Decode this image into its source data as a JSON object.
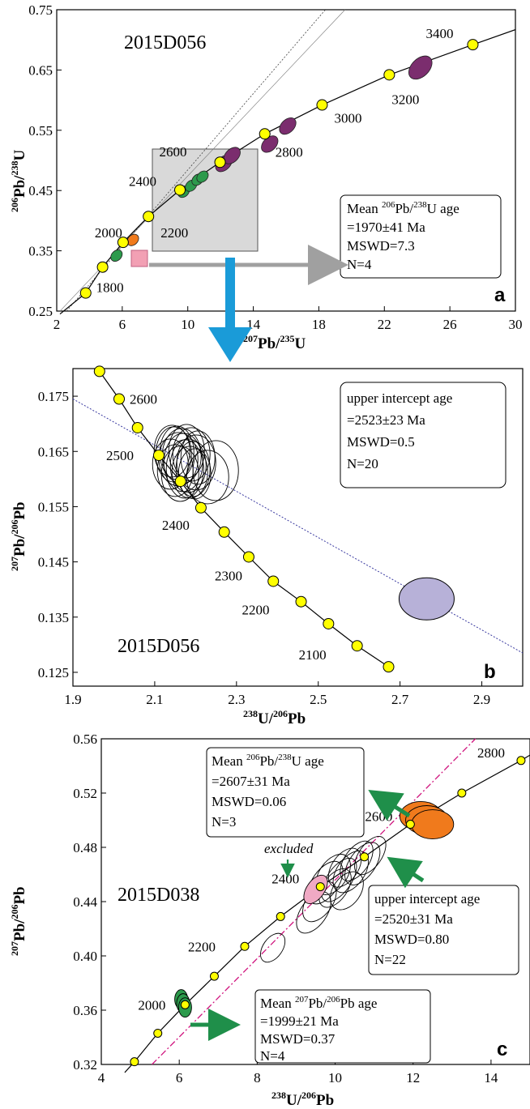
{
  "colors": {
    "concordia_point": "#ffff00",
    "purple_ellipse": "#7b2d6e",
    "green_ellipse": "#2c9a4c",
    "orange_ellipse": "#f07a1c",
    "pink_ellipse": "#f0a9c4",
    "lavender_ellipse": "#b7b1d8",
    "blue_arrow": "#1a9bd8",
    "grey_arrow": "#a0a0a0",
    "green_arrow": "#1f8f4a",
    "magenta_line": "#d0147e",
    "blue_dotted_line": "#3a3aa0",
    "grey_box": "#d9d9d9",
    "pink_box": "#f2a0b4"
  },
  "chart_data": [
    {
      "type": "scatter",
      "panel_label": "a",
      "sample": "2015D056",
      "xlabel": "207Pb/235U",
      "ylabel": "206Pb/238U",
      "xlim": [
        2,
        30
      ],
      "ylim": [
        0.25,
        0.75
      ],
      "xticks": [
        "2",
        "6",
        "10",
        "14",
        "18",
        "22",
        "26",
        "30"
      ],
      "yticks": [
        "0.25",
        "0.35",
        "0.45",
        "0.55",
        "0.65",
        "0.75"
      ],
      "concordia_points": [
        {
          "x": 3.77,
          "y": 0.28
        },
        {
          "x": 4.8,
          "y": 0.323,
          "label": "1800"
        },
        {
          "x": 6.05,
          "y": 0.364,
          "label": "2000"
        },
        {
          "x": 7.6,
          "y": 0.407,
          "label": "2200"
        },
        {
          "x": 9.52,
          "y": 0.451,
          "label": "2400"
        },
        {
          "x": 11.97,
          "y": 0.497,
          "label": "2600"
        },
        {
          "x": 14.7,
          "y": 0.544,
          "label": "2800"
        },
        {
          "x": 18.2,
          "y": 0.592,
          "label": "3000"
        },
        {
          "x": 22.3,
          "y": 0.642,
          "label": "3200"
        },
        {
          "x": 27.4,
          "y": 0.692,
          "label": "3400"
        }
      ],
      "ellipses": [
        {
          "x": 5.65,
          "y": 0.342,
          "color": "green"
        },
        {
          "x": 6.65,
          "y": 0.368,
          "color": "orange"
        },
        {
          "x": 9.75,
          "y": 0.448,
          "color": "green"
        },
        {
          "x": 10.2,
          "y": 0.458,
          "color": "green"
        },
        {
          "x": 10.6,
          "y": 0.468,
          "color": "green"
        },
        {
          "x": 10.9,
          "y": 0.473,
          "color": "green"
        },
        {
          "x": 12.2,
          "y": 0.495,
          "color": "purple"
        },
        {
          "x": 12.7,
          "y": 0.508,
          "color": "purple"
        },
        {
          "x": 15.0,
          "y": 0.527,
          "color": "purple"
        },
        {
          "x": 16.1,
          "y": 0.557,
          "color": "purple"
        },
        {
          "x": 24.2,
          "y": 0.654,
          "color": "purple"
        }
      ],
      "annotation": {
        "lines": [
          "Mean 206Pb/238U age",
          "=1970±41 Ma",
          "MSWD=7.3",
          "N=4"
        ]
      }
    },
    {
      "type": "scatter",
      "panel_label": "b",
      "sample": "2015D056",
      "xlabel": "238U/206Pb",
      "ylabel": "207Pb/206Pb",
      "xlim": [
        1.9,
        3.0
      ],
      "ylim": [
        0.125,
        0.18
      ],
      "xticks": [
        "1.9",
        "2.1",
        "2.3",
        "2.5",
        "2.7",
        "2.9"
      ],
      "yticks": [
        "0.125",
        "0.135",
        "0.145",
        "0.155",
        "0.165",
        "0.175"
      ],
      "concordia_points": [
        {
          "x": 1.965,
          "y": 0.1795
        },
        {
          "x": 2.013,
          "y": 0.1745,
          "label": "2600"
        },
        {
          "x": 2.058,
          "y": 0.1693
        },
        {
          "x": 2.11,
          "y": 0.1643,
          "label": "2500"
        },
        {
          "x": 2.163,
          "y": 0.1596
        },
        {
          "x": 2.213,
          "y": 0.1548,
          "label": "2400"
        },
        {
          "x": 2.27,
          "y": 0.1504
        },
        {
          "x": 2.33,
          "y": 0.1459,
          "label": "2300"
        },
        {
          "x": 2.39,
          "y": 0.1415
        },
        {
          "x": 2.458,
          "y": 0.1378,
          "label": "2200"
        },
        {
          "x": 2.525,
          "y": 0.1338
        },
        {
          "x": 2.595,
          "y": 0.1298,
          "label": "2100"
        },
        {
          "x": 2.672,
          "y": 0.126
        }
      ],
      "ellipse_cluster_center": {
        "x": 2.17,
        "y": 0.163,
        "count": 20
      },
      "outlier_ellipse": {
        "x": 2.765,
        "y": 0.1383
      },
      "discordia_line": [
        {
          "x": 1.9,
          "y": 0.1745
        },
        {
          "x": 3.0,
          "y": 0.1285
        }
      ],
      "annotation": {
        "lines": [
          "upper intercept age",
          "=2523±23 Ma",
          "MSWD=0.5",
          "N=20"
        ]
      }
    },
    {
      "type": "scatter",
      "panel_label": "c",
      "sample": "2015D038",
      "xlabel": "238U/206Pb",
      "ylabel": "207Pb/206Pb",
      "xlim": [
        4,
        15
      ],
      "ylim": [
        0.32,
        0.56
      ],
      "xticks": [
        "4",
        "6",
        "8",
        "10",
        "12",
        "14"
      ],
      "yticks": [
        "0.32",
        "0.36",
        "0.40",
        "0.44",
        "0.48",
        "0.52",
        "0.56"
      ],
      "concordia_points": [
        {
          "x": 4.85,
          "y": 0.322
        },
        {
          "x": 5.45,
          "y": 0.343
        },
        {
          "x": 6.15,
          "y": 0.364,
          "label": "2000"
        },
        {
          "x": 6.9,
          "y": 0.385
        },
        {
          "x": 7.68,
          "y": 0.407,
          "label": "2200"
        },
        {
          "x": 8.6,
          "y": 0.429
        },
        {
          "x": 9.62,
          "y": 0.451,
          "label": "2400"
        },
        {
          "x": 10.75,
          "y": 0.473
        },
        {
          "x": 11.93,
          "y": 0.497,
          "label": "2600"
        },
        {
          "x": 13.25,
          "y": 0.52
        },
        {
          "x": 14.77,
          "y": 0.544,
          "label": "2800"
        }
      ],
      "discordia_line": [
        {
          "x": 5.3,
          "y": 0.32
        },
        {
          "x": 13.6,
          "y": 0.56
        }
      ],
      "annotations": [
        {
          "lines": [
            "Mean 206Pb/238U age",
            "=2607±31 Ma",
            "MSWD=0.06",
            "N=3"
          ]
        },
        {
          "lines": [
            "upper intercept age",
            "=2520±31 Ma",
            "MSWD=0.80",
            "N=22"
          ]
        },
        {
          "lines": [
            "Mean 207Pb/206Pb age",
            "=1999±21 Ma",
            "MSWD=0.37",
            "N=4"
          ]
        }
      ],
      "excluded_label": "excluded"
    }
  ]
}
